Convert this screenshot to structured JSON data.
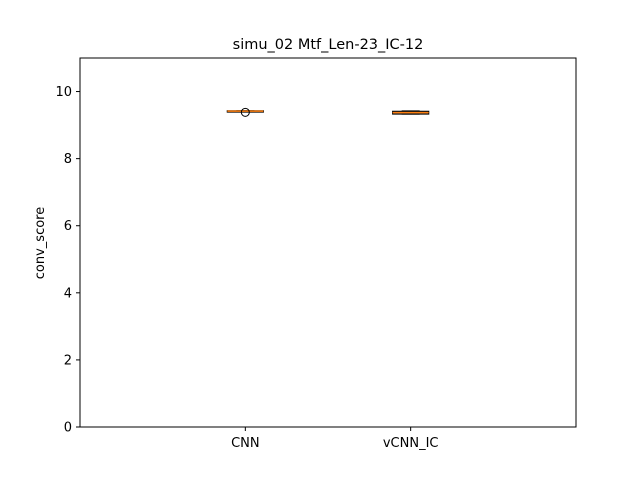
{
  "chart_data": {
    "type": "box",
    "title": "simu_02 Mtf_Len-23_IC-12",
    "xlabel": "",
    "ylabel": "conv_score",
    "ylim": [
      0,
      11
    ],
    "yticks": [
      0,
      2,
      4,
      6,
      8,
      10
    ],
    "grid": false,
    "categories": [
      "CNN",
      "vCNN_IC"
    ],
    "boxes": [
      {
        "category": "CNN",
        "whisker_low": 9.41,
        "q1": 9.41,
        "median": 9.415,
        "q3": 9.425,
        "whisker_high": 9.425,
        "outliers": [
          9.38
        ]
      },
      {
        "category": "vCNN_IC",
        "whisker_low": 9.33,
        "q1": 9.33,
        "median": 9.37,
        "q3": 9.41,
        "whisker_high": 9.42,
        "outliers": []
      }
    ],
    "colors": {
      "box": "#000000",
      "median": "#ff7f0e",
      "axes": "#000000"
    }
  }
}
